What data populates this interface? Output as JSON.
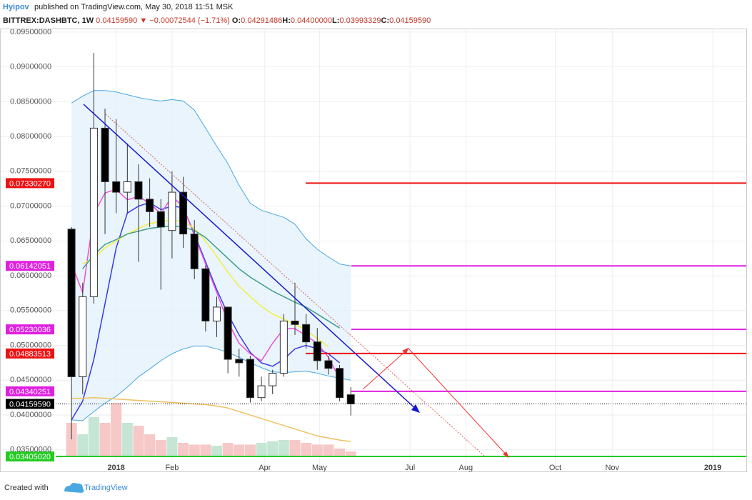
{
  "header": {
    "author": "Hyipov",
    "published": "published on TradingView.com, May 30, 2018 11:51 MSK",
    "symbol": "BITTREX:DASHBTC, 1W",
    "last": "0.04159590",
    "arrow": "▼",
    "change": "−0.00072544 (−1.71%)",
    "ohlc": [
      {
        "key": "O:",
        "value": "0.04291486"
      },
      {
        "key": "H:",
        "value": "0.04400000"
      },
      {
        "key": "L:",
        "value": "0.03993329"
      },
      {
        "key": "C:",
        "value": "0.04159590"
      }
    ]
  },
  "chart_data": {
    "type": "candlestick",
    "x": [
      0,
      1,
      2,
      3,
      4,
      5,
      6,
      7,
      8,
      9,
      10,
      11,
      12,
      13,
      14,
      15,
      16,
      17,
      18,
      19,
      20,
      21,
      22,
      23,
      24,
      25
    ],
    "open": [
      0.0667,
      0.0455,
      0.057,
      0.0812,
      0.0735,
      0.072,
      0.0735,
      0.071,
      0.0692,
      0.0665,
      0.072,
      0.066,
      0.061,
      0.0535,
      0.0555,
      0.048,
      0.048,
      0.0425,
      0.0442,
      0.046,
      0.0535,
      0.053,
      0.0505,
      0.0478,
      0.0467,
      0.04291486
    ],
    "high": [
      0.067,
      0.059,
      0.092,
      0.084,
      0.0825,
      0.079,
      0.076,
      0.074,
      0.071,
      0.075,
      0.0742,
      0.068,
      0.0615,
      0.057,
      0.0555,
      0.0495,
      0.0485,
      0.0455,
      0.0465,
      0.0545,
      0.059,
      0.0545,
      0.0525,
      0.0485,
      0.0472,
      0.044
    ],
    "low": [
      0.0365,
      0.043,
      0.056,
      0.066,
      0.069,
      0.069,
      0.062,
      0.067,
      0.058,
      0.0625,
      0.064,
      0.0595,
      0.052,
      0.0512,
      0.046,
      0.0455,
      0.0418,
      0.042,
      0.043,
      0.0455,
      0.0515,
      0.0495,
      0.0465,
      0.0458,
      0.042,
      0.03993329
    ],
    "close": [
      0.0455,
      0.057,
      0.0812,
      0.0735,
      0.072,
      0.0735,
      0.071,
      0.0692,
      0.067,
      0.072,
      0.066,
      0.061,
      0.0535,
      0.0555,
      0.048,
      0.0475,
      0.0425,
      0.0442,
      0.046,
      0.0535,
      0.053,
      0.0505,
      0.0478,
      0.0467,
      0.0425,
      0.0415959
    ],
    "volume": [
      60,
      40,
      70,
      60,
      95,
      60,
      55,
      40,
      30,
      35,
      25,
      22,
      22,
      20,
      25,
      22,
      22,
      25,
      28,
      30,
      30,
      25,
      22,
      22,
      15,
      10
    ],
    "vlim": [
      0,
      100
    ],
    "band": {
      "color": "#4aa8e0",
      "fill": "#e3f1fb",
      "upper": [
        0.0848,
        0.0858,
        0.0866,
        0.0866,
        0.0864,
        0.086,
        0.0856,
        0.0853,
        0.0851,
        0.0853,
        0.0851,
        0.0838,
        0.0812,
        0.0786,
        0.0761,
        0.073,
        0.0704,
        0.0694,
        0.0689,
        0.0684,
        0.0674,
        0.0653,
        0.0638,
        0.0627,
        0.0617,
        0.0614
      ],
      "lower": [
        0.0393,
        0.0392,
        0.0405,
        0.0417,
        0.0427,
        0.044,
        0.0455,
        0.0466,
        0.0478,
        0.0488,
        0.0495,
        0.0499,
        0.0499,
        0.0495,
        0.049,
        0.0483,
        0.0475,
        0.0468,
        0.0462,
        0.0461,
        0.0462,
        0.0463,
        0.046,
        0.0456,
        0.0453,
        0.045
      ]
    },
    "series": [
      {
        "color": "#3a3ae8",
        "values": [
          0.0393,
          0.042,
          0.048,
          0.056,
          0.064,
          0.069,
          0.07,
          0.0705,
          0.0695,
          0.07,
          0.0698,
          0.066,
          0.062,
          0.058,
          0.0545,
          0.0515,
          0.049,
          0.0475,
          0.047,
          0.048,
          0.0495,
          0.05,
          0.0495,
          0.0488,
          0.0475,
          null
        ]
      },
      {
        "color": "#ee4fd8",
        "values": [
          0.0617,
          0.0576,
          0.0689,
          0.0719,
          0.0724,
          0.0709,
          0.0714,
          0.0704,
          0.0689,
          0.0714,
          0.0699,
          0.0658,
          0.0617,
          0.0576,
          0.0534,
          0.0503,
          0.0488,
          0.0478,
          0.0503,
          0.0524,
          0.0524,
          0.0514,
          0.0503,
          0.0483,
          0.0452,
          null
        ]
      },
      {
        "color": "#f0f040",
        "values": [
          null,
          0.0617,
          0.0625,
          0.064,
          0.065,
          0.066,
          0.0668,
          0.0675,
          0.0678,
          0.068,
          0.0678,
          0.0668,
          0.065,
          0.0628,
          0.0605,
          0.0585,
          0.057,
          0.0556,
          0.0545,
          0.0538,
          0.053,
          0.0522,
          0.051,
          0.0498,
          null,
          null
        ]
      },
      {
        "color": "#3c9e8a",
        "values": [
          null,
          0.061,
          0.063,
          0.0645,
          0.0652,
          0.066,
          0.0664,
          0.0668,
          0.067,
          0.0672,
          0.067,
          0.0665,
          0.0655,
          0.064,
          0.0625,
          0.061,
          0.0598,
          0.0588,
          0.0578,
          0.057,
          0.0562,
          0.0555,
          0.0545,
          0.0535,
          0.0525,
          null
        ]
      },
      {
        "color": "#f0c060",
        "values": [
          0.0424,
          0.0424,
          0.0425,
          0.0424,
          0.0423,
          0.0422,
          0.0421,
          0.042,
          0.0419,
          0.0418,
          0.0417,
          0.0416,
          0.0415,
          0.0413,
          0.041,
          0.0405,
          0.04,
          0.0395,
          0.039,
          0.0385,
          0.038,
          0.0375,
          0.037,
          0.0367,
          0.0364,
          0.0362
        ]
      }
    ],
    "levels": [
      {
        "value": 0.0733027,
        "label": "0.07330270",
        "color": "#ee1111"
      },
      {
        "value": 0.06142051,
        "label": "0.06142051",
        "color": "#e020e0"
      },
      {
        "value": 0.05230036,
        "label": "0.05230036",
        "color": "#e020e0"
      },
      {
        "value": 0.04883513,
        "label": "0.04883513",
        "color": "#ee1111"
      },
      {
        "value": 0.04340251,
        "label": "0.04340251",
        "color": "#e020e0"
      },
      {
        "value": 0.0415959,
        "label": "0.04159590",
        "color": "#000000"
      },
      {
        "value": 0.0340502,
        "label": "0.03405020",
        "color": "#22cc22"
      }
    ],
    "up_color": "#ffffff",
    "down_color": "#000000",
    "xlim": [
      -6.4,
      60.4
    ],
    "ylim": [
      0.0319,
      0.0955
    ],
    "xticks": [
      {
        "value": 4,
        "label": "2018"
      },
      {
        "value": 9,
        "label": "Feb"
      },
      {
        "value": 17.3,
        "label": "Apr"
      },
      {
        "value": 22.2,
        "label": "May"
      },
      {
        "value": 30.3,
        "label": "Jul"
      },
      {
        "value": 35.3,
        "label": "Aug"
      },
      {
        "value": 43.3,
        "label": "Oct"
      },
      {
        "value": 48.4,
        "label": "Nov"
      },
      {
        "value": 57.4,
        "label": "2019"
      }
    ],
    "yticks": [
      {
        "value": 0.035,
        "label": "0.03500000"
      },
      {
        "value": 0.04,
        "label": "0.04000000"
      },
      {
        "value": 0.045,
        "label": "0.04500000"
      },
      {
        "value": 0.05,
        "label": "0.05000000"
      },
      {
        "value": 0.055,
        "label": "0.05500000"
      },
      {
        "value": 0.06,
        "label": "0.06000000"
      },
      {
        "value": 0.065,
        "label": "0.06500000"
      },
      {
        "value": 0.07,
        "label": "0.07000000"
      },
      {
        "value": 0.075,
        "label": "0.07500000"
      },
      {
        "value": 0.08,
        "label": "0.08000000"
      },
      {
        "value": 0.085,
        "label": "0.08500000"
      },
      {
        "value": 0.09,
        "label": "0.09000000"
      },
      {
        "value": 0.095,
        "label": "0.09500000"
      }
    ],
    "grid": true
  },
  "footer": {
    "created": "Created with",
    "brand": "TradingView"
  }
}
